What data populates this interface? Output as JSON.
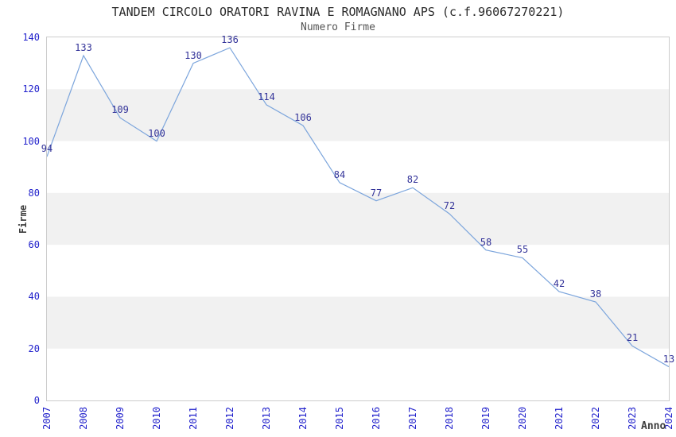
{
  "chart_data": {
    "type": "line",
    "title": "TANDEM CIRCOLO ORATORI RAVINA E ROMAGNANO APS (c.f.96067270221)",
    "subtitle": "Numero Firme",
    "xlabel": "Anno",
    "ylabel": "Firme",
    "categories": [
      "2007",
      "2008",
      "2009",
      "2010",
      "2011",
      "2012",
      "2013",
      "2014",
      "2015",
      "2016",
      "2017",
      "2018",
      "2019",
      "2020",
      "2021",
      "2022",
      "2023",
      "2024"
    ],
    "values": [
      94,
      133,
      109,
      100,
      130,
      136,
      114,
      106,
      84,
      77,
      82,
      72,
      58,
      55,
      42,
      38,
      21,
      13
    ],
    "ylim": [
      0,
      140
    ],
    "ytick_step": 20,
    "legend": "none",
    "grid": "alternating-horizontal-bands",
    "data_labels": true,
    "colors": {
      "line": "#7ca5dc",
      "band": "#f1f1f1",
      "tick_label": "#2222cc",
      "data_label": "#333399",
      "title": "#2b2b2b",
      "subtitle": "#555555",
      "axis_title": "#3d3d3d",
      "plot_border": "#cccccc"
    }
  }
}
